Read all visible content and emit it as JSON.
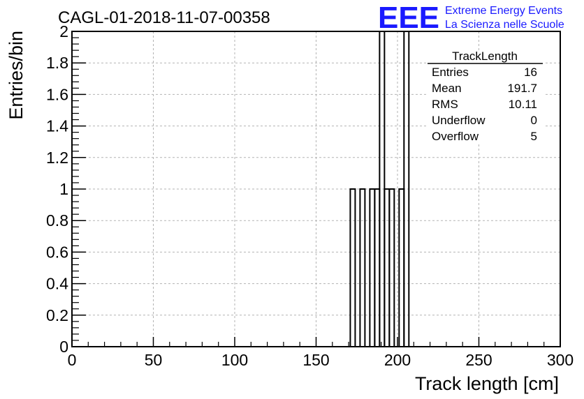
{
  "run_label": "CAGL-01-2018-11-07-00358",
  "logo": {
    "mark": "EEE",
    "line1": "Extreme Energy Events",
    "line2": "La Scienza nelle Scuole",
    "color": "#1a1aff"
  },
  "stats": {
    "title": "TrackLength",
    "rows": [
      {
        "name": "Entries",
        "value": "16"
      },
      {
        "name": "Mean",
        "value": "191.7"
      },
      {
        "name": "RMS",
        "value": "10.11"
      },
      {
        "name": "Underflow",
        "value": "0"
      },
      {
        "name": "Overflow",
        "value": "5"
      }
    ]
  },
  "chart_data": {
    "type": "bar",
    "style": "step-histogram",
    "title": "CAGL-01-2018-11-07-00358",
    "xlabel": "Track length [cm]",
    "ylabel": "Entries/bin",
    "xlim": [
      0,
      300
    ],
    "ylim": [
      0,
      2
    ],
    "grid": true,
    "legend": "top-right",
    "x_ticks": [
      0,
      50,
      100,
      150,
      200,
      250,
      300
    ],
    "y_ticks": [
      0,
      0.2,
      0.4,
      0.6,
      0.8,
      1,
      1.2,
      1.4,
      1.6,
      1.8,
      2
    ],
    "y_tick_labels": [
      "0",
      "0.2",
      "0.4",
      "0.6",
      "0.8",
      "1",
      "1.2",
      "1.4",
      "1.6",
      "1.8",
      "2"
    ],
    "bin_width": 3,
    "bins": [
      {
        "x": 171,
        "value": 1
      },
      {
        "x": 177,
        "value": 1
      },
      {
        "x": 183,
        "value": 1
      },
      {
        "x": 186,
        "value": 1
      },
      {
        "x": 189,
        "value": 2
      },
      {
        "x": 192,
        "value": 1
      },
      {
        "x": 195,
        "value": 1
      },
      {
        "x": 201,
        "value": 1
      },
      {
        "x": 204,
        "value": 2
      }
    ]
  }
}
